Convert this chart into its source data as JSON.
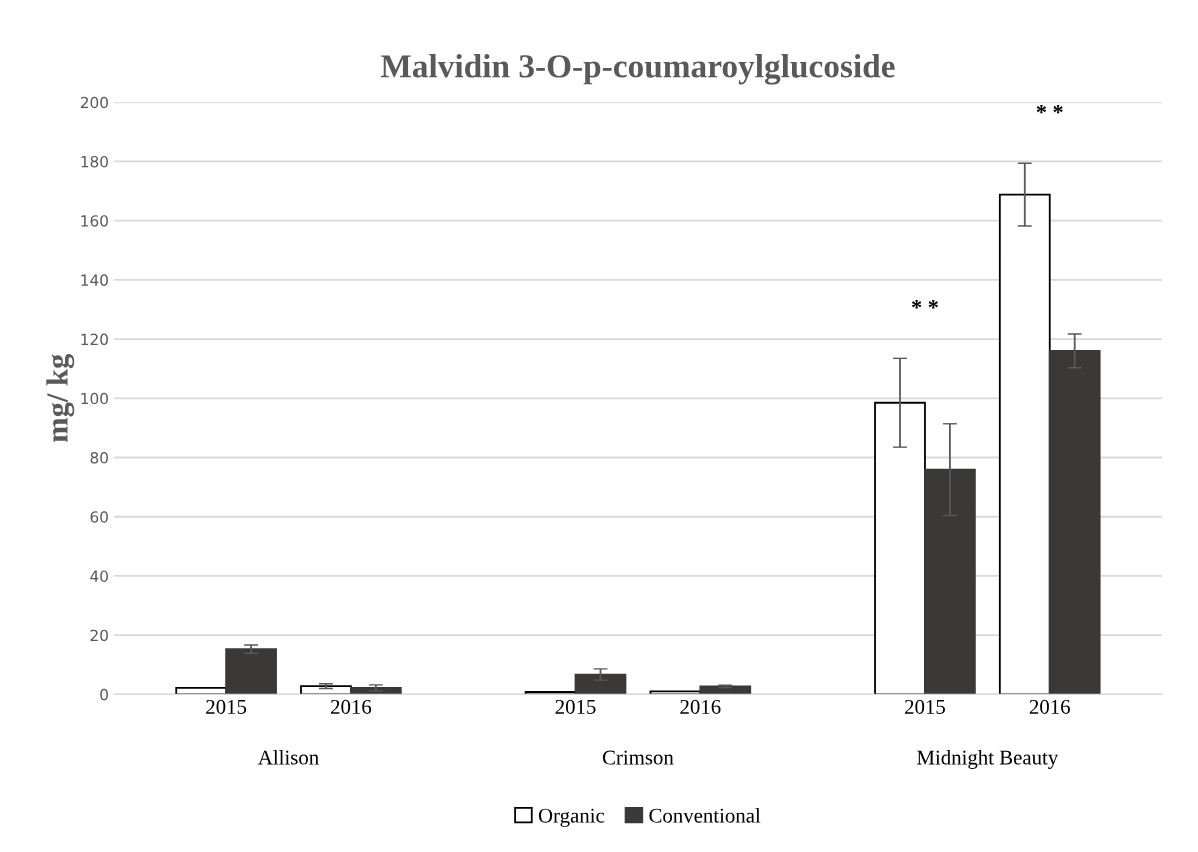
{
  "chart_data": {
    "type": "bar",
    "title": "Malvidin 3-O-p-coumaroylglucoside",
    "ylabel": "mg/ kg",
    "categories": [
      "2015",
      "2016",
      "2015",
      "2016",
      "2015",
      "2016"
    ],
    "series": [
      {
        "name": "Organic",
        "color": "#ffffff",
        "values": [
          2.2,
          2.8,
          0.8,
          1.0,
          98.5,
          168.8
        ],
        "errors": [
          null,
          0.8,
          null,
          null,
          15,
          10.6
        ]
      },
      {
        "name": "Conventional",
        "color": "#3a3937",
        "values": [
          15.3,
          2.2,
          6.7,
          2.7,
          75.9,
          116
        ],
        "errors": [
          1.4,
          1.0,
          1.9,
          0.4,
          15.5,
          5.7
        ]
      }
    ],
    "annotations": [
      "Allison",
      "Crimson",
      "Midnight Beauty",
      "* *",
      "* *"
    ],
    "ylim": [
      0,
      200
    ],
    "yticks": [
      0,
      20,
      40,
      60,
      80,
      100,
      120,
      140,
      160,
      180,
      200
    ],
    "grid": "y",
    "legend": "bottom"
  }
}
